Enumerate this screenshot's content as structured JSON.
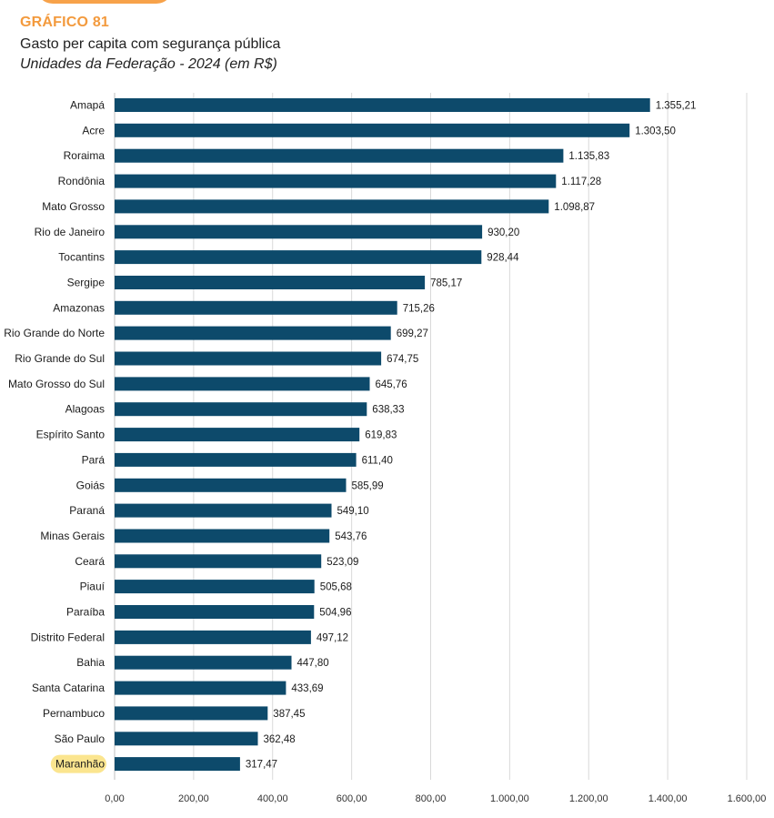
{
  "header": {
    "kicker": "GRÁFICO 81",
    "title": "Gasto per capita com segurança pública",
    "subtitle": "Unidades da Federação - 2024 (em R$)"
  },
  "colors": {
    "bar": "#0d4a6b",
    "kicker": "#f39a3d",
    "highlight": "#fbe58f",
    "grid": "#d9d9d9"
  },
  "chart_data": {
    "type": "bar",
    "orientation": "horizontal",
    "title": "Gasto per capita com segurança pública",
    "subtitle": "Unidades da Federação - 2024 (em R$)",
    "xlim": [
      0,
      1600
    ],
    "ticks": [
      0,
      200,
      400,
      600,
      800,
      1000,
      1200,
      1400,
      1600
    ],
    "tick_labels": [
      "0,00",
      "200,00",
      "400,00",
      "600,00",
      "800,00",
      "1.000,00",
      "1.200,00",
      "1.400,00",
      "1.600,00"
    ],
    "grid": true,
    "highlight": "Maranhão",
    "categories": [
      "Amapá",
      "Acre",
      "Roraima",
      "Rondônia",
      "Mato Grosso",
      "Rio de Janeiro",
      "Tocantins",
      "Sergipe",
      "Amazonas",
      "Rio Grande do Norte",
      "Rio Grande do Sul",
      "Mato Grosso do Sul",
      "Alagoas",
      "Espírito Santo",
      "Pará",
      "Goiás",
      "Paraná",
      "Minas Gerais",
      "Ceará",
      "Piauí",
      "Paraíba",
      "Distrito Federal",
      "Bahia",
      "Santa Catarina",
      "Pernambuco",
      "São Paulo",
      "Maranhão"
    ],
    "values": [
      1355.21,
      1303.5,
      1135.83,
      1117.28,
      1098.87,
      930.2,
      928.44,
      785.17,
      715.26,
      699.27,
      674.75,
      645.76,
      638.33,
      619.83,
      611.4,
      585.99,
      549.1,
      543.76,
      523.09,
      505.68,
      504.96,
      497.12,
      447.8,
      433.69,
      387.45,
      362.48,
      317.47
    ],
    "value_labels": [
      "1.355,21",
      "1.303,50",
      "1.135,83",
      "1.117,28",
      "1.098,87",
      "930,20",
      "928,44",
      "785,17",
      "715,26",
      "699,27",
      "674,75",
      "645,76",
      "638,33",
      "619,83",
      "611,40",
      "585,99",
      "549,10",
      "543,76",
      "523,09",
      "505,68",
      "504,96",
      "497,12",
      "447,80",
      "433,69",
      "387,45",
      "362,48",
      "317,47"
    ]
  }
}
